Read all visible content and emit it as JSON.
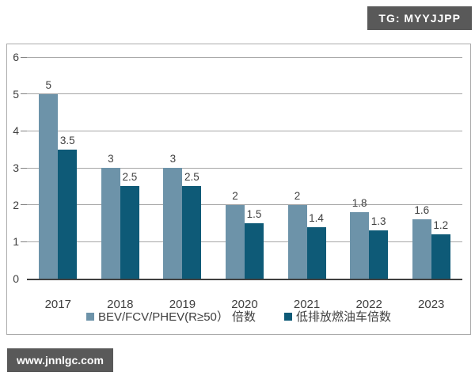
{
  "watermark": {
    "tag": "TG: MYYJJPP",
    "site": "www.jnnlgc.com"
  },
  "colors": {
    "series1": "#6d93a9",
    "series2": "#0e5a77",
    "badge_bg": "#595959",
    "gridline": "#a6a6a6",
    "axis": "#404040",
    "frame_border": "#ababab",
    "text": "#3f3f3f"
  },
  "chart_data": {
    "type": "bar",
    "categories": [
      "2017",
      "2018",
      "2019",
      "2020",
      "2021",
      "2022",
      "2023"
    ],
    "series": [
      {
        "name": "BEV/FCV/PHEV(R≥50） 倍数",
        "color": "#6d93a9",
        "values": [
          5,
          3,
          3,
          2,
          2,
          1.8,
          1.6
        ]
      },
      {
        "name": "低排放燃油车倍数",
        "color": "#0e5a77",
        "values": [
          3.5,
          2.5,
          2.5,
          1.5,
          1.4,
          1.3,
          1.2
        ]
      }
    ],
    "title": "",
    "xlabel": "",
    "ylabel": "",
    "ylim": [
      0,
      6
    ],
    "yticks": [
      0,
      1,
      2,
      3,
      4,
      5,
      6
    ],
    "grid": true,
    "legend_position": "bottom",
    "data_labels": true
  }
}
